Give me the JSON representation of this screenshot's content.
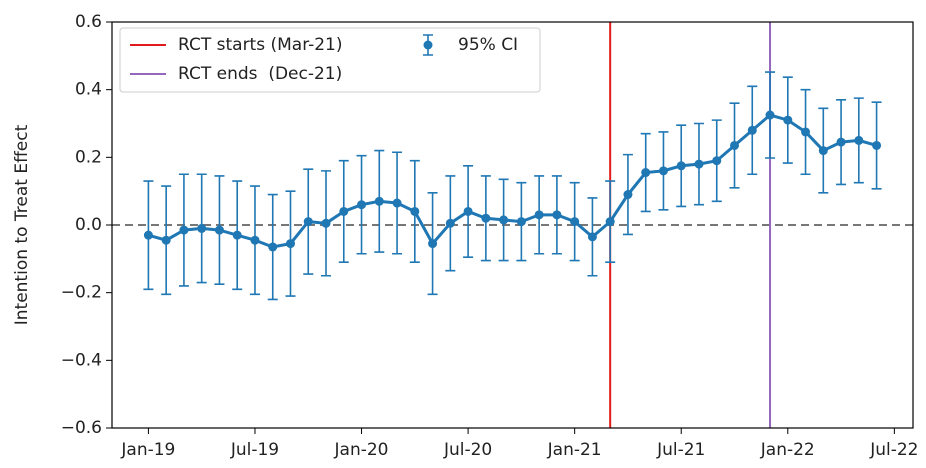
{
  "chart_data": {
    "type": "errorbar-line",
    "y_label": "Intention to Treat Effect",
    "x": [
      0,
      1,
      2,
      3,
      4,
      5,
      6,
      7,
      8,
      9,
      10,
      11,
      12,
      13,
      14,
      15,
      16,
      17,
      18,
      19,
      20,
      21,
      22,
      23,
      24,
      25,
      26,
      27,
      28,
      29,
      30,
      31,
      32,
      33,
      34,
      35,
      36,
      37,
      38,
      39,
      40,
      41
    ],
    "series": [
      {
        "name": "95% CI",
        "color": "#1f77b4",
        "values": [
          -0.03,
          -0.045,
          -0.015,
          -0.01,
          -0.015,
          -0.03,
          -0.045,
          -0.065,
          -0.055,
          0.01,
          0.005,
          0.04,
          0.06,
          0.07,
          0.065,
          0.04,
          -0.055,
          0.005,
          0.04,
          0.02,
          0.015,
          0.01,
          0.03,
          0.03,
          0.01,
          -0.035,
          0.01,
          0.09,
          0.155,
          0.16,
          0.175,
          0.18,
          0.19,
          0.235,
          0.28,
          0.325,
          0.31,
          0.275,
          0.22,
          0.245,
          0.25,
          0.235
        ],
        "errors": [
          0.16,
          0.16,
          0.165,
          0.16,
          0.16,
          0.16,
          0.16,
          0.155,
          0.155,
          0.155,
          0.155,
          0.15,
          0.145,
          0.15,
          0.15,
          0.15,
          0.15,
          0.14,
          0.135,
          0.125,
          0.12,
          0.115,
          0.115,
          0.115,
          0.115,
          0.115,
          0.12,
          0.118,
          0.115,
          0.115,
          0.12,
          0.12,
          0.12,
          0.125,
          0.13,
          0.127,
          0.127,
          0.125,
          0.125,
          0.125,
          0.125,
          0.128
        ]
      }
    ],
    "vlines": [
      {
        "x": 26,
        "label": "RCT starts (Mar-21)",
        "color": "#e31a1c"
      },
      {
        "x": 35,
        "label": "RCT ends  (Dec-21)",
        "color": "#9467bd"
      }
    ],
    "hlines": [
      {
        "y": 0,
        "color": "#777777"
      }
    ],
    "xlim": [
      -2.05,
      43.05
    ],
    "xticks": [
      {
        "value": 0,
        "label": "Jan-19"
      },
      {
        "value": 6,
        "label": "Jul-19"
      },
      {
        "value": 12,
        "label": "Jan-20"
      },
      {
        "value": 18,
        "label": "Jul-20"
      },
      {
        "value": 24,
        "label": "Jan-21"
      },
      {
        "value": 30,
        "label": "Jul-21"
      },
      {
        "value": 36,
        "label": "Jan-22"
      },
      {
        "value": 42,
        "label": "Jul-22"
      }
    ],
    "ylim": [
      -0.6,
      0.6
    ],
    "yticks": [
      {
        "value": -0.6,
        "label": "−0.6"
      },
      {
        "value": -0.4,
        "label": "−0.4"
      },
      {
        "value": -0.2,
        "label": "−0.2"
      },
      {
        "value": 0,
        "label": "0.0"
      },
      0.2,
      0.4,
      0.6
    ],
    "legend": "upper left"
  }
}
